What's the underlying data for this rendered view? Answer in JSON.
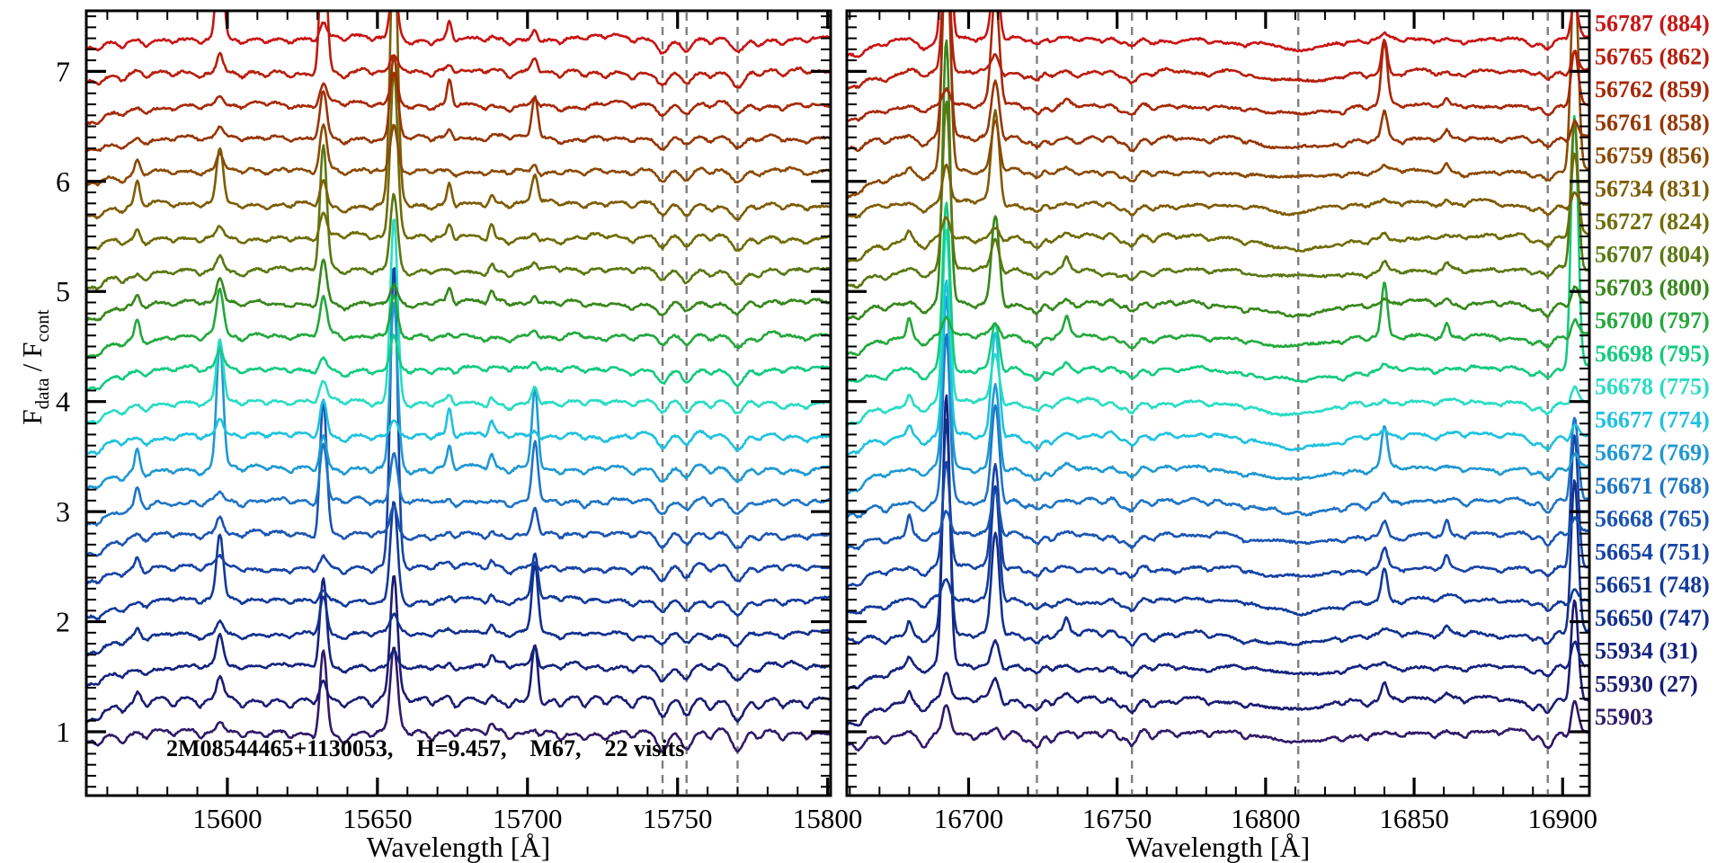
{
  "chart_data": {
    "type": "line",
    "description": "Stacked stellar visit spectra, two wavelength panels, one offset trace per visit",
    "annotation": {
      "star_id": "2M08544465+1130053,",
      "h_mag": "H=9.457,",
      "cluster": "M67,",
      "visits_count": "22 visits"
    },
    "x_axis": {
      "label": "Wavelength [Å]"
    },
    "y_axis": {
      "label_f": "F",
      "label_sub_num": "data",
      "label_div": "/",
      "label_f2": "F",
      "label_sub_den": "cont",
      "range": [
        0.42,
        7.55
      ],
      "major_ticks": [
        {
          "v": 1,
          "label": "1"
        },
        {
          "v": 2,
          "label": "2"
        },
        {
          "v": 3,
          "label": "3"
        },
        {
          "v": 4,
          "label": "4"
        },
        {
          "v": 5,
          "label": "5"
        },
        {
          "v": 6,
          "label": "6"
        },
        {
          "v": 7,
          "label": "7"
        }
      ],
      "minor_tick_step": 0.1
    },
    "panels": [
      {
        "name": "left",
        "wl_min": 15553,
        "wl_max": 15801,
        "major_ticks": [
          {
            "wl": 15600,
            "label": "15600"
          },
          {
            "wl": 15650,
            "label": "15650"
          },
          {
            "wl": 15700,
            "label": "15700"
          },
          {
            "wl": 15750,
            "label": "15750"
          },
          {
            "wl": 15800,
            "label": "15800"
          }
        ],
        "minor_tick_step": 10,
        "dashed_lines": [
          15745,
          15753,
          15770
        ]
      },
      {
        "name": "right",
        "wl_min": 16659,
        "wl_max": 16909,
        "major_ticks": [
          {
            "wl": 16700,
            "label": "16700"
          },
          {
            "wl": 16750,
            "label": "16750"
          },
          {
            "wl": 16800,
            "label": "16800"
          },
          {
            "wl": 16850,
            "label": "16850"
          },
          {
            "wl": 16900,
            "label": "16900"
          }
        ],
        "minor_tick_step": 10,
        "dashed_lines": [
          16723,
          16755,
          16811,
          16895
        ]
      }
    ],
    "offset_step": 0.3,
    "series": [
      {
        "label": "56787 (884)",
        "color": "#c81414",
        "offset": 7.3
      },
      {
        "label": "56765 (862)",
        "color": "#b71e0c",
        "offset": 7.0
      },
      {
        "label": "56762 (859)",
        "color": "#a62807",
        "offset": 6.7
      },
      {
        "label": "56761 (858)",
        "color": "#963605",
        "offset": 6.4
      },
      {
        "label": "56759 (856)",
        "color": "#8a4a04",
        "offset": 6.1
      },
      {
        "label": "56734 (831)",
        "color": "#7d5c05",
        "offset": 5.8
      },
      {
        "label": "56727 (824)",
        "color": "#6e6c07",
        "offset": 5.5
      },
      {
        "label": "56707 (804)",
        "color": "#5a7711",
        "offset": 5.2
      },
      {
        "label": "56703 (800)",
        "color": "#37871c",
        "offset": 4.9
      },
      {
        "label": "56700 (797)",
        "color": "#23a83c",
        "offset": 4.6
      },
      {
        "label": "56698 (795)",
        "color": "#12cb80",
        "offset": 4.3
      },
      {
        "label": "56678 (775)",
        "color": "#2adcc3",
        "offset": 4.0
      },
      {
        "label": "56677 (774)",
        "color": "#1fc2de",
        "offset": 3.7
      },
      {
        "label": "56672 (769)",
        "color": "#1f99d1",
        "offset": 3.4
      },
      {
        "label": "56671 (768)",
        "color": "#1e75c5",
        "offset": 3.1
      },
      {
        "label": "56668 (765)",
        "color": "#1a55b2",
        "offset": 2.8
      },
      {
        "label": "56654 (751)",
        "color": "#1643a5",
        "offset": 2.5
      },
      {
        "label": "56651 (748)",
        "color": "#123a9a",
        "offset": 2.2
      },
      {
        "label": "56650 (747)",
        "color": "#11308e",
        "offset": 1.9
      },
      {
        "label": "55934 (31)",
        "color": "#14237e",
        "offset": 1.6
      },
      {
        "label": "55930 (27)",
        "color": "#1b1c72",
        "offset": 1.3
      },
      {
        "label": "55903",
        "color": "#301a68",
        "offset": 1.0
      }
    ],
    "spectral_features": {
      "absorption_left": [
        [
          15557,
          0.05,
          1.2
        ],
        [
          15565,
          0.05,
          1.1
        ],
        [
          15573,
          0.045,
          1.1
        ],
        [
          15582,
          0.03,
          1.0
        ],
        [
          15591,
          0.04,
          1.0
        ],
        [
          15605,
          0.04,
          1.1
        ],
        [
          15613,
          0.03,
          1.0
        ],
        [
          15621,
          0.035,
          1.0
        ],
        [
          15629,
          0.03,
          0.9
        ],
        [
          15639,
          0.045,
          1.2
        ],
        [
          15648,
          0.035,
          1.0
        ],
        [
          15661,
          0.03,
          1.0
        ],
        [
          15668,
          0.04,
          1.0
        ],
        [
          15676,
          0.035,
          1.0
        ],
        [
          15686,
          0.03,
          1.0
        ],
        [
          15694,
          0.045,
          1.1
        ],
        [
          15704,
          0.03,
          0.9
        ],
        [
          15711,
          0.04,
          1.0
        ],
        [
          15719,
          0.035,
          1.0
        ],
        [
          15726,
          0.03,
          1.0
        ],
        [
          15735,
          0.045,
          1.1
        ],
        [
          15745,
          0.11,
          1.7
        ],
        [
          15753,
          0.1,
          1.6
        ],
        [
          15761,
          0.05,
          1.2
        ],
        [
          15770,
          0.12,
          2.0
        ],
        [
          15777,
          0.05,
          1.3
        ],
        [
          15785,
          0.04,
          1.1
        ],
        [
          15793,
          0.035,
          1.0
        ]
      ],
      "emission_left": [
        [
          15597.5,
          0.6,
          1.1
        ],
        [
          15632,
          0.55,
          1.1
        ],
        [
          15655.5,
          1.0,
          1.2
        ],
        [
          15702.5,
          0.3,
          1.0
        ],
        [
          15570,
          0.07,
          0.8
        ],
        [
          15674,
          0.08,
          0.8
        ],
        [
          15688,
          0.05,
          0.8
        ]
      ],
      "absorption_right": [
        [
          16663,
          0.05,
          1.3
        ],
        [
          16672,
          0.04,
          1.1
        ],
        [
          16685,
          0.075,
          1.6
        ],
        [
          16702,
          0.035,
          1.0
        ],
        [
          16712,
          0.04,
          1.1
        ],
        [
          16719,
          0.05,
          1.2
        ],
        [
          16723,
          0.095,
          1.6
        ],
        [
          16728,
          0.055,
          1.2
        ],
        [
          16737,
          0.03,
          1.0
        ],
        [
          16745,
          0.035,
          1.0
        ],
        [
          16751,
          0.05,
          1.2
        ],
        [
          16755,
          0.095,
          1.6
        ],
        [
          16762,
          0.045,
          1.2
        ],
        [
          16770,
          0.03,
          1.0
        ],
        [
          16781,
          0.03,
          1.0
        ],
        [
          16793,
          0.03,
          1.0
        ],
        [
          16826,
          0.03,
          1.0
        ],
        [
          16834,
          0.035,
          1.0
        ],
        [
          16846,
          0.03,
          1.0
        ],
        [
          16857,
          0.03,
          1.0
        ],
        [
          16867,
          0.035,
          1.0
        ],
        [
          16879,
          0.03,
          1.0
        ],
        [
          16890,
          0.055,
          1.4
        ],
        [
          16895,
          0.095,
          1.6
        ],
        [
          16902,
          0.05,
          1.2
        ]
      ],
      "broad_right": [
        [
          16811,
          0.09,
          13
        ]
      ],
      "emission_right": [
        [
          16692.5,
          1.0,
          1.2
        ],
        [
          16709,
          0.5,
          1.3
        ],
        [
          16680,
          0.07,
          0.8
        ],
        [
          16733,
          0.05,
          0.8
        ],
        [
          16840,
          0.22,
          1.0
        ],
        [
          16861,
          0.05,
          0.8
        ],
        [
          16904,
          0.8,
          1.2
        ]
      ],
      "edge_rolloff": {
        "amp": 0.12,
        "decay": 9
      },
      "noise_amp": 0.018,
      "seed": 77
    },
    "legend_position": "right-outside",
    "grid": false
  },
  "style": {
    "background": "#ffffff",
    "axis_color": "#000000",
    "dashed_line_color": "#7f7f7f",
    "text_color": "#000000",
    "spectrum_line_width": 2.6
  }
}
